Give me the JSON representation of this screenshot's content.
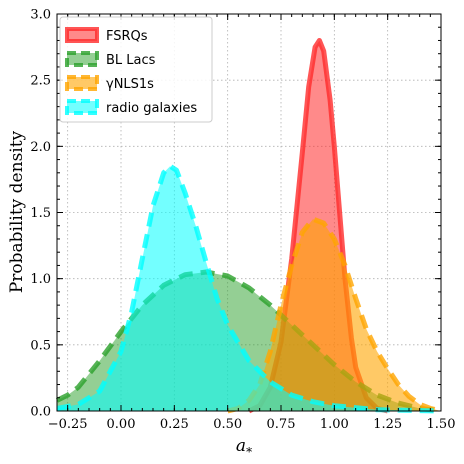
{
  "chart_data": {
    "type": "area",
    "xlabel": "a",
    "xlabel_sub": "*",
    "ylabel": "Probability density",
    "xlim": [
      -0.3,
      1.5
    ],
    "ylim": [
      0,
      3.0
    ],
    "xticks": [
      -0.25,
      0.0,
      0.25,
      0.5,
      0.75,
      1.0,
      1.25,
      1.5
    ],
    "xtick_labels": [
      "−0.25",
      "0.00",
      "0.25",
      "0.50",
      "0.75",
      "1.00",
      "1.25",
      "1.50"
    ],
    "yticks": [
      0.0,
      0.5,
      1.0,
      1.5,
      2.0,
      2.5,
      3.0
    ],
    "ytick_labels": [
      "0.0",
      "0.5",
      "1.0",
      "1.5",
      "2.0",
      "2.5",
      "3.0"
    ],
    "grid": true,
    "legend_position": "top-left",
    "series": [
      {
        "name": "FSRQs",
        "color": "#ff2a2a",
        "fill_opacity": 0.55,
        "line_style": "solid",
        "points": [
          [
            0.6,
            0.0
          ],
          [
            0.65,
            0.04
          ],
          [
            0.7,
            0.18
          ],
          [
            0.75,
            0.52
          ],
          [
            0.8,
            1.15
          ],
          [
            0.85,
            1.95
          ],
          [
            0.88,
            2.45
          ],
          [
            0.91,
            2.75
          ],
          [
            0.93,
            2.8
          ],
          [
            0.95,
            2.72
          ],
          [
            0.98,
            2.35
          ],
          [
            1.0,
            2.0
          ],
          [
            1.03,
            1.4
          ],
          [
            1.05,
            1.0
          ],
          [
            1.08,
            0.55
          ],
          [
            1.1,
            0.33
          ],
          [
            1.15,
            0.1
          ],
          [
            1.2,
            0.02
          ],
          [
            1.25,
            0.0
          ]
        ]
      },
      {
        "name": "BL Lacs",
        "color": "#2aa02a",
        "fill_opacity": 0.5,
        "line_style": "dashed",
        "points": [
          [
            -0.3,
            0.08
          ],
          [
            -0.25,
            0.12
          ],
          [
            -0.2,
            0.18
          ],
          [
            -0.1,
            0.38
          ],
          [
            0.0,
            0.6
          ],
          [
            0.1,
            0.8
          ],
          [
            0.2,
            0.95
          ],
          [
            0.3,
            1.03
          ],
          [
            0.4,
            1.05
          ],
          [
            0.5,
            1.02
          ],
          [
            0.6,
            0.93
          ],
          [
            0.7,
            0.8
          ],
          [
            0.8,
            0.65
          ],
          [
            0.9,
            0.5
          ],
          [
            1.0,
            0.35
          ],
          [
            1.1,
            0.22
          ],
          [
            1.2,
            0.12
          ],
          [
            1.3,
            0.06
          ],
          [
            1.4,
            0.02
          ],
          [
            1.5,
            0.0
          ]
        ]
      },
      {
        "name": "γNLS1s",
        "color": "#ffa500",
        "fill_opacity": 0.6,
        "line_style": "dashed",
        "points": [
          [
            0.5,
            0.0
          ],
          [
            0.55,
            0.02
          ],
          [
            0.6,
            0.08
          ],
          [
            0.65,
            0.2
          ],
          [
            0.7,
            0.45
          ],
          [
            0.75,
            0.8
          ],
          [
            0.8,
            1.1
          ],
          [
            0.85,
            1.35
          ],
          [
            0.9,
            1.45
          ],
          [
            0.95,
            1.42
          ],
          [
            1.0,
            1.3
          ],
          [
            1.05,
            1.1
          ],
          [
            1.1,
            0.85
          ],
          [
            1.15,
            0.62
          ],
          [
            1.2,
            0.45
          ],
          [
            1.25,
            0.32
          ],
          [
            1.3,
            0.2
          ],
          [
            1.35,
            0.11
          ],
          [
            1.4,
            0.05
          ],
          [
            1.45,
            0.02
          ],
          [
            1.5,
            0.0
          ]
        ]
      },
      {
        "name": "radio galaxies",
        "color": "#00ffff",
        "fill_opacity": 0.55,
        "line_style": "dashed",
        "points": [
          [
            -0.3,
            0.02
          ],
          [
            -0.2,
            0.05
          ],
          [
            -0.1,
            0.15
          ],
          [
            0.0,
            0.45
          ],
          [
            0.05,
            0.75
          ],
          [
            0.1,
            1.15
          ],
          [
            0.15,
            1.55
          ],
          [
            0.2,
            1.8
          ],
          [
            0.23,
            1.85
          ],
          [
            0.26,
            1.82
          ],
          [
            0.3,
            1.65
          ],
          [
            0.35,
            1.4
          ],
          [
            0.4,
            1.12
          ],
          [
            0.45,
            0.85
          ],
          [
            0.5,
            0.65
          ],
          [
            0.6,
            0.38
          ],
          [
            0.7,
            0.22
          ],
          [
            0.8,
            0.12
          ],
          [
            0.9,
            0.07
          ],
          [
            1.0,
            0.04
          ],
          [
            1.2,
            0.01
          ],
          [
            1.5,
            0.0
          ]
        ]
      }
    ]
  }
}
